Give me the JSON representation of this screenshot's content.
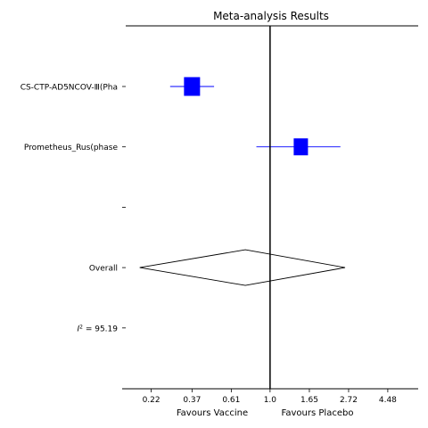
{
  "chart_data": {
    "type": "forest",
    "title": "Meta-analysis Results",
    "xscale": "log",
    "xlim": [
      0.159,
      6.6
    ],
    "x_ticks": [
      "0.22",
      "0.37",
      "0.61",
      "1.0",
      "1.65",
      "2.72",
      "4.48"
    ],
    "x_tick_values": [
      0.22,
      0.37,
      0.61,
      1.0,
      1.65,
      2.72,
      4.48
    ],
    "xlabel_left": "Favours Vaccine",
    "xlabel_right": "Favours Placebo",
    "null_line": 1.0,
    "rows": [
      {
        "label": "CS-CTP-AD5NCOV-Ⅲ(Pha",
        "kind": "study",
        "estimate": 0.37,
        "ci": [
          0.28,
          0.49
        ]
      },
      {
        "label": "Prometheus_Rus(phase",
        "kind": "study",
        "estimate": 1.48,
        "ci": [
          0.84,
          2.45
        ]
      },
      {
        "label": "",
        "kind": "blank"
      },
      {
        "label": "Overall",
        "kind": "overall",
        "estimate": 0.73,
        "ci": [
          0.19,
          2.6
        ]
      },
      {
        "label": "I² = 95.19",
        "kind": "stat"
      }
    ],
    "colors": {
      "study_marker": "#0000ff",
      "lines": "#000000"
    }
  }
}
